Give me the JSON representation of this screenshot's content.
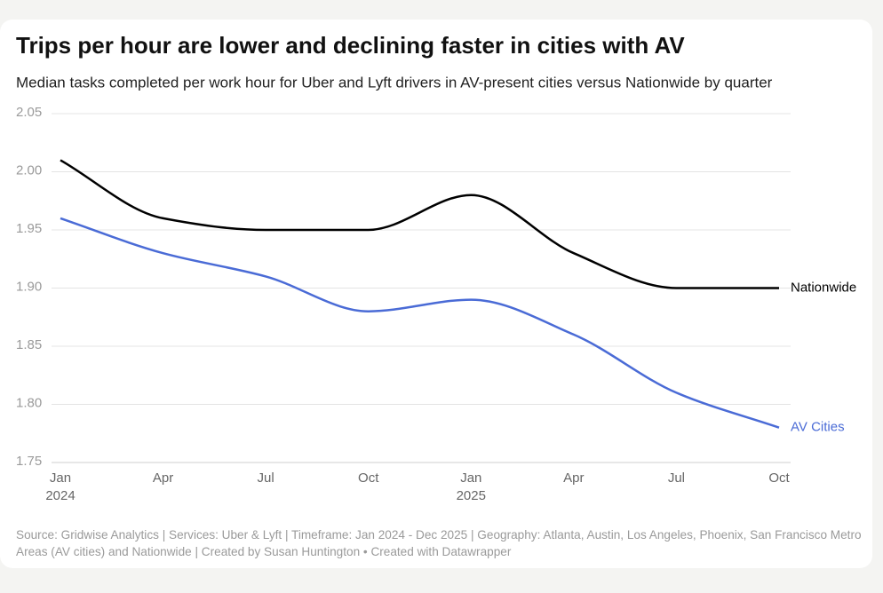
{
  "chart_data": {
    "type": "line",
    "title": "Trips per hour are lower and declining faster in cities with AV",
    "subtitle": "Median tasks completed per work hour for Uber and Lyft drivers in AV-present cities versus Nationwide by quarter",
    "categories": [
      "Jan",
      "Apr",
      "Jul",
      "Oct",
      "Jan",
      "Apr",
      "Jul",
      "Oct"
    ],
    "years": [
      "2024",
      null,
      null,
      null,
      "2025",
      null,
      null,
      null
    ],
    "series": [
      {
        "name": "Nationwide",
        "color": "#000000",
        "values": [
          2.01,
          1.96,
          1.95,
          1.95,
          1.98,
          1.93,
          1.9,
          1.9
        ]
      },
      {
        "name": "AV Cities",
        "color": "#4a6bd6",
        "values": [
          1.96,
          1.93,
          1.91,
          1.88,
          1.89,
          1.86,
          1.81,
          1.78
        ]
      }
    ],
    "ylim": [
      1.75,
      2.05
    ],
    "yticks": [
      2.05,
      {
        "value": 2.0,
        "label": "2.00"
      },
      1.95,
      {
        "value": 1.9,
        "label": "1.90"
      },
      1.85,
      {
        "value": 1.8,
        "label": "1.80"
      },
      1.75
    ],
    "grid": true,
    "source": "Source: Gridwise Analytics | Services: Uber & Lyft | Timeframe: Jan 2024 - Dec 2025 | Geography: Atlanta, Austin, Los Angeles, Phoenix, San Francisco Metro Areas (AV cities) and Nationwide | Created by Susan Huntington • Created with Datawrapper"
  }
}
